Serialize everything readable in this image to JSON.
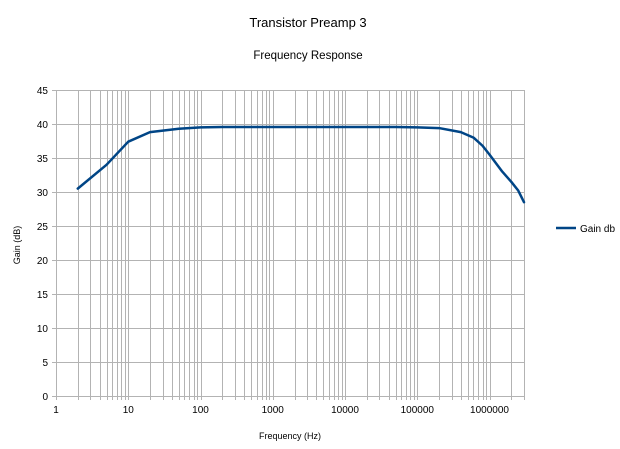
{
  "chart_data": {
    "type": "line",
    "title": "Transistor Preamp 3",
    "subtitle": "Frequency Response",
    "xlabel": "Frequency (Hz)",
    "ylabel": "Gain (dB)",
    "xscale": "log",
    "xlim": [
      1,
      3000000
    ],
    "ylim": [
      0,
      45
    ],
    "x_tick_labels": [
      "1",
      "10",
      "100",
      "1000",
      "10000",
      "100000",
      "1000000"
    ],
    "y_tick_labels": [
      "0",
      "5",
      "10",
      "15",
      "20",
      "25",
      "30",
      "35",
      "40",
      "45"
    ],
    "grid": true,
    "legend_position": "right",
    "series": [
      {
        "name": "Gain db",
        "color": "#004586",
        "x": [
          2,
          5,
          10,
          20,
          50,
          100,
          200,
          500,
          1000,
          2000,
          5000,
          10000,
          20000,
          50000,
          100000,
          200000,
          400000,
          600000,
          800000,
          1000000,
          1500000,
          2000000,
          2500000,
          3000000
        ],
        "y": [
          30.5,
          34.0,
          37.4,
          38.8,
          39.3,
          39.5,
          39.55,
          39.55,
          39.55,
          39.55,
          39.55,
          39.55,
          39.55,
          39.55,
          39.5,
          39.4,
          38.8,
          38.0,
          36.8,
          35.5,
          33.0,
          31.5,
          30.2,
          28.5
        ]
      }
    ]
  }
}
